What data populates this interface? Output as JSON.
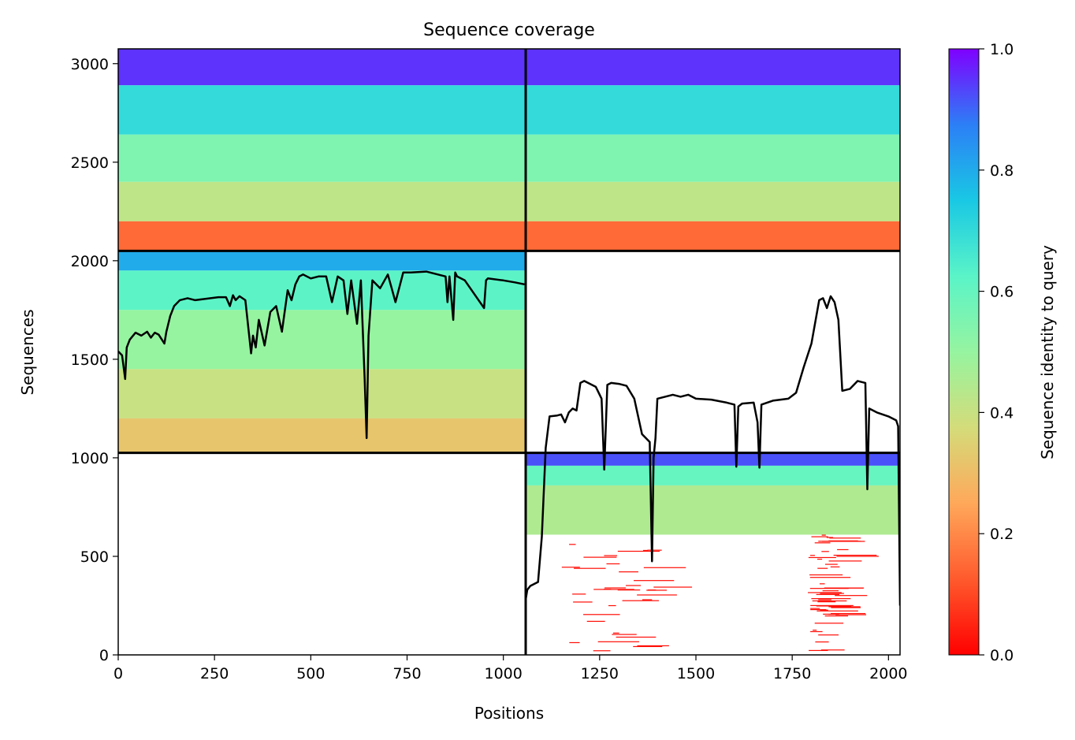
{
  "chart_data": {
    "type": "heatmap",
    "title": "Sequence coverage",
    "xlabel": "Positions",
    "ylabel": "Sequences",
    "xlim": [
      0,
      2030
    ],
    "ylim": [
      0,
      3075
    ],
    "xticks": [
      0,
      250,
      500,
      750,
      1000,
      1250,
      1500,
      1750,
      2000
    ],
    "yticks": [
      0,
      500,
      1000,
      1500,
      2000,
      2500,
      3000
    ],
    "colorbar": {
      "label": "Sequence identity to query",
      "range": [
        0,
        1
      ],
      "ticks": [
        "0.0",
        "0.2",
        "0.4",
        "0.6",
        "0.8",
        "1.0"
      ],
      "colormap": "rainbow_r"
    },
    "chain_boundary_position": 1058,
    "block_dividers": {
      "x": 1058,
      "y": [
        1025,
        2050
      ]
    },
    "msa_blocks": [
      {
        "name": "paired",
        "x": [
          0,
          2030
        ],
        "y": [
          2050,
          3075
        ],
        "bands": [
          {
            "y": [
              2890,
              3075
            ],
            "identity": 0.95
          },
          {
            "y": [
              2640,
              2890
            ],
            "identity": 0.7
          },
          {
            "y": [
              2400,
              2640
            ],
            "identity": 0.55
          },
          {
            "y": [
              2200,
              2400
            ],
            "identity": 0.42
          },
          {
            "y": [
              2050,
              2200
            ],
            "identity": 0.15
          }
        ]
      },
      {
        "name": "chain-A-unpaired",
        "x": [
          0,
          1058
        ],
        "y": [
          1025,
          2050
        ],
        "bands": [
          {
            "y": [
              1950,
              2050
            ],
            "identity": 0.8
          },
          {
            "y": [
              1750,
              1950
            ],
            "identity": 0.62
          },
          {
            "y": [
              1450,
              1750
            ],
            "identity": 0.5
          },
          {
            "y": [
              1200,
              1450
            ],
            "identity": 0.4
          },
          {
            "y": [
              1025,
              1200
            ],
            "identity": 0.32
          }
        ]
      },
      {
        "name": "chain-B-unpaired",
        "x": [
          1058,
          2030
        ],
        "y": [
          0,
          1025
        ],
        "bands": [
          {
            "y": [
              960,
              1025
            ],
            "identity": 0.92
          },
          {
            "y": [
              860,
              960
            ],
            "identity": 0.6
          },
          {
            "y": [
              610,
              860
            ],
            "identity": 0.45
          },
          {
            "y": [
              0,
              610
            ],
            "identity": 0.02,
            "sparse": true
          }
        ]
      }
    ],
    "series": [
      {
        "x": [
          0,
          10,
          18,
          22,
          30,
          45,
          60,
          75,
          85,
          95,
          105,
          120,
          125,
          135,
          145,
          160,
          180,
          200,
          220,
          240,
          260,
          280,
          290,
          298,
          305,
          315,
          330,
          345,
          350,
          357,
          365,
          380,
          395,
          410,
          425,
          440,
          450,
          460,
          470,
          480,
          500,
          520,
          540,
          555,
          570,
          585,
          595,
          605,
          620,
          630,
          640,
          645,
          650,
          660,
          680,
          700,
          710,
          720,
          740,
          760,
          800,
          850,
          855,
          860,
          870,
          875,
          880,
          900,
          950,
          955,
          960,
          1000,
          1030,
          1055
        ],
        "values": [
          1540,
          1520,
          1400,
          1560,
          1600,
          1635,
          1620,
          1640,
          1610,
          1635,
          1625,
          1580,
          1640,
          1720,
          1770,
          1800,
          1810,
          1800,
          1805,
          1810,
          1815,
          1815,
          1770,
          1825,
          1800,
          1820,
          1800,
          1530,
          1620,
          1560,
          1700,
          1570,
          1740,
          1770,
          1640,
          1850,
          1800,
          1880,
          1920,
          1930,
          1910,
          1920,
          1920,
          1790,
          1920,
          1900,
          1730,
          1900,
          1680,
          1900,
          1400,
          1100,
          1620,
          1900,
          1860,
          1930,
          1860,
          1790,
          1940,
          1940,
          1945,
          1920,
          1790,
          1920,
          1700,
          1940,
          1920,
          1900,
          1760,
          1900,
          1910,
          1900,
          1890,
          1880
        ]
      },
      {
        "x": [
          1058,
          1062,
          1070,
          1080,
          1090,
          1100,
          1110,
          1120,
          1140,
          1150,
          1160,
          1170,
          1180,
          1190,
          1200,
          1210,
          1220,
          1240,
          1255,
          1262,
          1270,
          1280,
          1300,
          1320,
          1340,
          1360,
          1380,
          1386,
          1390,
          1395,
          1400,
          1420,
          1440,
          1460,
          1480,
          1500,
          1540,
          1580,
          1600,
          1605,
          1610,
          1620,
          1650,
          1660,
          1665,
          1670,
          1700,
          1740,
          1760,
          1780,
          1800,
          1820,
          1830,
          1840,
          1850,
          1860,
          1870,
          1880,
          1900,
          1920,
          1940,
          1945,
          1950,
          1970,
          2000,
          2020,
          2025,
          2030
        ],
        "values": [
          280,
          330,
          350,
          360,
          370,
          600,
          1050,
          1210,
          1215,
          1220,
          1180,
          1230,
          1250,
          1240,
          1380,
          1390,
          1380,
          1360,
          1300,
          940,
          1370,
          1380,
          1375,
          1365,
          1300,
          1120,
          1080,
          475,
          1000,
          1100,
          1300,
          1310,
          1320,
          1310,
          1320,
          1300,
          1295,
          1280,
          1270,
          955,
          1260,
          1275,
          1280,
          1180,
          950,
          1270,
          1290,
          1300,
          1330,
          1460,
          1580,
          1800,
          1810,
          1760,
          1820,
          1790,
          1700,
          1340,
          1350,
          1390,
          1380,
          840,
          1250,
          1230,
          1210,
          1190,
          1160,
          250
        ]
      }
    ]
  }
}
